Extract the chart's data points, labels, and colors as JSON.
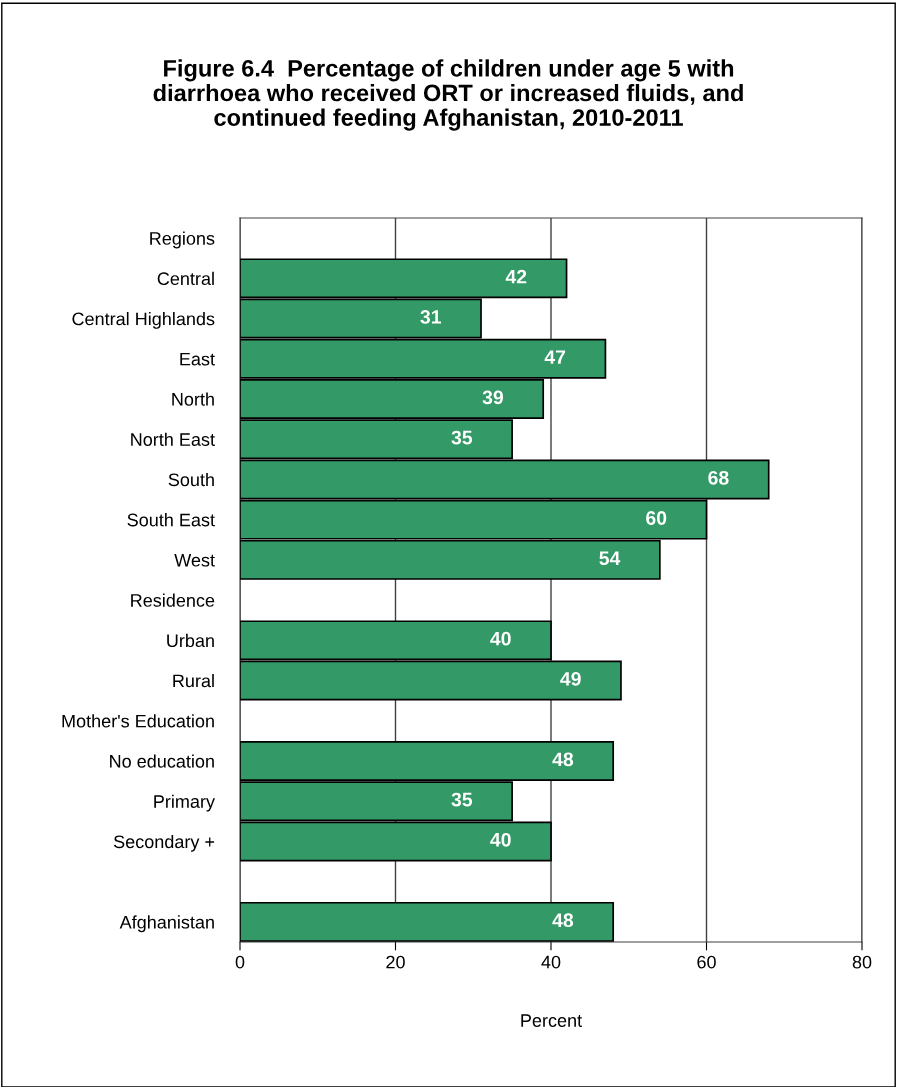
{
  "chart_data": {
    "type": "bar",
    "orientation": "horizontal",
    "title": "Figure 6.4  Percentage of children under age 5 with\ndiarrhoea who received ORT or increased fluids, and\ncontinued feeding Afghanistan, 2010-2011",
    "xlabel": "Percent",
    "categories": [
      "Regions",
      "Central",
      "Central Highlands",
      "East",
      "North",
      "North East",
      "South",
      "South East",
      "West",
      "Residence",
      "Urban",
      "Rural",
      "Mother's Education",
      "No education",
      "Primary",
      "Secondary +",
      null,
      "Afghanistan"
    ],
    "values": [
      null,
      42,
      31,
      47,
      39,
      35,
      68,
      60,
      54,
      null,
      40,
      49,
      null,
      48,
      35,
      40,
      null,
      48
    ],
    "color": "#339966",
    "xlim": [
      0,
      80
    ],
    "xticks": [
      0,
      20,
      40,
      60,
      80
    ],
    "grid": "x",
    "legend": false,
    "data_labels": true
  }
}
